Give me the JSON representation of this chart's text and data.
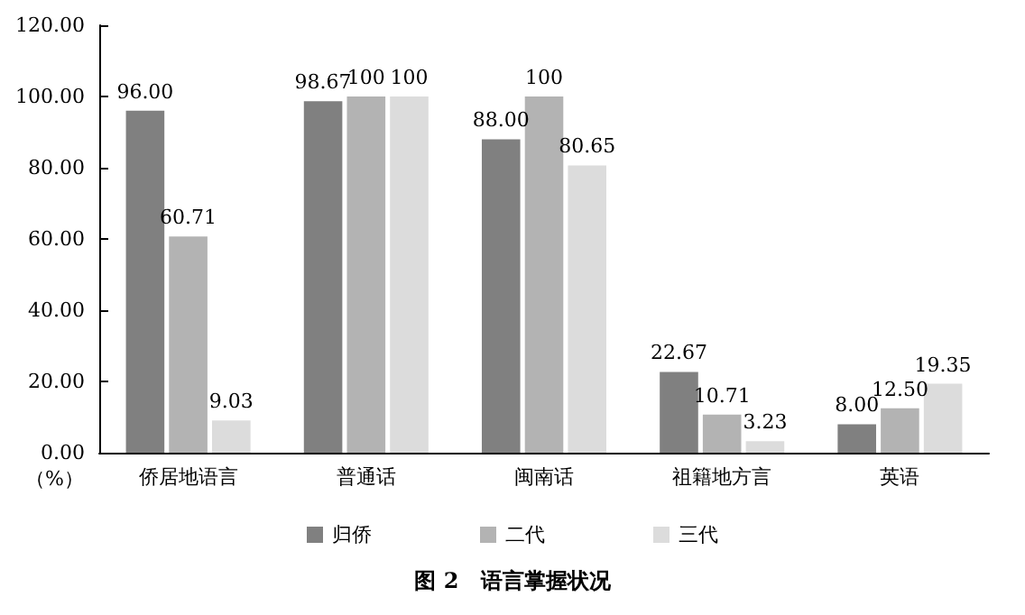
{
  "chart_data": {
    "type": "bar",
    "title": "图 2　语言掌握状况",
    "ylabel": "（%）",
    "categories": [
      "侨居地语言",
      "普通话",
      "闽南话",
      "祖籍地方言",
      "英语"
    ],
    "series": [
      {
        "name": "归侨",
        "color": "#808080",
        "values": [
          96.0,
          98.67,
          88.0,
          22.67,
          8.0
        ],
        "value_labels": [
          "96.00",
          "98.67",
          "88.00",
          "22.67",
          "8.00"
        ]
      },
      {
        "name": "二代",
        "color": "#b3b3b3",
        "values": [
          60.71,
          100,
          100,
          10.71,
          12.5
        ],
        "value_labels": [
          "60.71",
          "100",
          "100",
          "10.71",
          "12.50"
        ]
      },
      {
        "name": "三代",
        "color": "#dcdcdc",
        "values": [
          9.03,
          100,
          80.65,
          3.23,
          19.35
        ],
        "value_labels": [
          "9.03",
          "100",
          "80.65",
          "3.23",
          "19.35"
        ]
      }
    ],
    "ylim": [
      0,
      120
    ],
    "yticks": [
      {
        "value": 0,
        "label": "0.00"
      },
      {
        "value": 20,
        "label": "20.00"
      },
      {
        "value": 40,
        "label": "40.00"
      },
      {
        "value": 60,
        "label": "60.00"
      },
      {
        "value": 80,
        "label": "80.00"
      },
      {
        "value": 100,
        "label": "100.00"
      },
      {
        "value": 120,
        "label": "120.00"
      }
    ],
    "grid": false,
    "legend": "bottom"
  }
}
